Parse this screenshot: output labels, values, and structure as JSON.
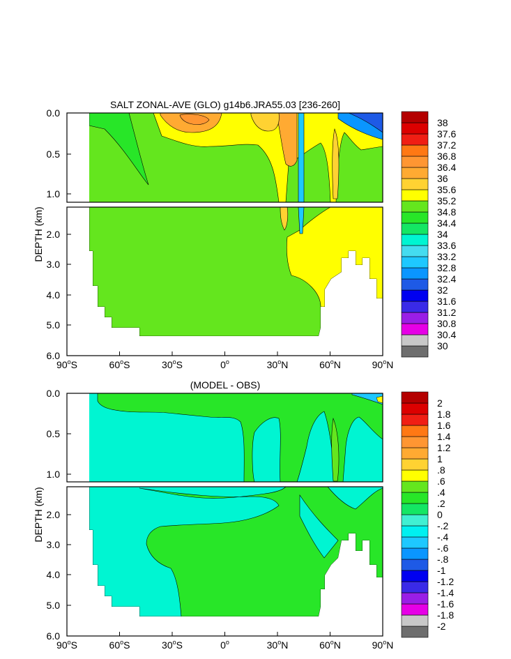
{
  "chart_data": [
    {
      "type": "contour",
      "title": "SALT ZONAL-AVE (GLO) g14b6.JRA55.03 [236-260]",
      "ylabel": "DEPTH (km)",
      "xlabel": "",
      "x_ticks": [
        {
          "value": -90,
          "label": "90",
          "deg": "o",
          "hemi": "S"
        },
        {
          "value": -60,
          "label": "60",
          "deg": "o",
          "hemi": "S"
        },
        {
          "value": -30,
          "label": "30",
          "deg": "o",
          "hemi": "S"
        },
        {
          "value": 0,
          "label": "0",
          "deg": "o",
          "hemi": ""
        },
        {
          "value": 30,
          "label": "30",
          "deg": "o",
          "hemi": "N"
        },
        {
          "value": 60,
          "label": "60",
          "deg": "o",
          "hemi": "N"
        },
        {
          "value": 90,
          "label": "90",
          "deg": "o",
          "hemi": "N"
        }
      ],
      "y_ticks_upper": [
        "0.0",
        "0.5",
        "1.0"
      ],
      "y_ticks_lower": [
        "2.0",
        "3.0",
        "4.0",
        "5.0",
        "6.0"
      ],
      "xlim": [
        -90,
        90
      ],
      "ylim_upper_km": [
        0,
        1.5
      ],
      "ylim_lower_km": [
        1.5,
        6
      ],
      "colorbar": {
        "labels": [
          "30",
          "30.4",
          "30.8",
          "31.2",
          "31.6",
          "32",
          "32.4",
          "32.8",
          "33.2",
          "33.6",
          "34",
          "34.4",
          "34.8",
          "35.2",
          "35.6",
          "36",
          "36.4",
          "36.8",
          "37.2",
          "37.6",
          "38"
        ],
        "colors": [
          "#6e6e6e",
          "#c8c8c8",
          "#e600e6",
          "#9a1ee6",
          "#3a2ae8",
          "#0000f0",
          "#1e5ae6",
          "#0a96ff",
          "#1ec8ff",
          "#44dcf0",
          "#00f5d2",
          "#14e664",
          "#28e628",
          "#64e61e",
          "#ffff00",
          "#ffd232",
          "#ffaa32",
          "#ff9632",
          "#ff7814",
          "#f01e14",
          "#dc0000",
          "#b40000"
        ]
      }
    },
    {
      "type": "contour",
      "title": "(MODEL - OBS)",
      "ylabel": "DEPTH (km)",
      "xlabel": "",
      "x_ticks": [
        {
          "value": -90,
          "label": "90",
          "deg": "o",
          "hemi": "S"
        },
        {
          "value": -60,
          "label": "60",
          "deg": "o",
          "hemi": "S"
        },
        {
          "value": -30,
          "label": "30",
          "deg": "o",
          "hemi": "S"
        },
        {
          "value": 0,
          "label": "0",
          "deg": "o",
          "hemi": ""
        },
        {
          "value": 30,
          "label": "30",
          "deg": "o",
          "hemi": "N"
        },
        {
          "value": 60,
          "label": "60",
          "deg": "o",
          "hemi": "N"
        },
        {
          "value": 90,
          "label": "90",
          "deg": "o",
          "hemi": "N"
        }
      ],
      "y_ticks_upper": [
        "0.0",
        "0.5",
        "1.0"
      ],
      "y_ticks_lower": [
        "2.0",
        "3.0",
        "4.0",
        "5.0",
        "6.0"
      ],
      "xlim": [
        -90,
        90
      ],
      "ylim_upper_km": [
        0,
        1.5
      ],
      "ylim_lower_km": [
        1.5,
        6
      ],
      "colorbar": {
        "labels": [
          "-2",
          "-1.8",
          "-1.6",
          "-1.4",
          "-1.2",
          "-1",
          "-.8",
          "-.6",
          "-.4",
          "-.2",
          "0",
          ".2",
          ".4",
          ".6",
          ".8",
          "1",
          "1.2",
          "1.4",
          "1.6",
          "1.8",
          "2"
        ],
        "colors": [
          "#6e6e6e",
          "#c8c8c8",
          "#e600e6",
          "#9a1ee6",
          "#3a2ae8",
          "#0000f0",
          "#1e5ae6",
          "#0a96ff",
          "#1ec8ff",
          "#00f0f0",
          "#40f0d2",
          "#14e664",
          "#28e628",
          "#64e61e",
          "#ffff00",
          "#ffd232",
          "#ffaa32",
          "#ff9632",
          "#ff7814",
          "#f01e14",
          "#dc0000",
          "#b40000"
        ]
      }
    }
  ]
}
